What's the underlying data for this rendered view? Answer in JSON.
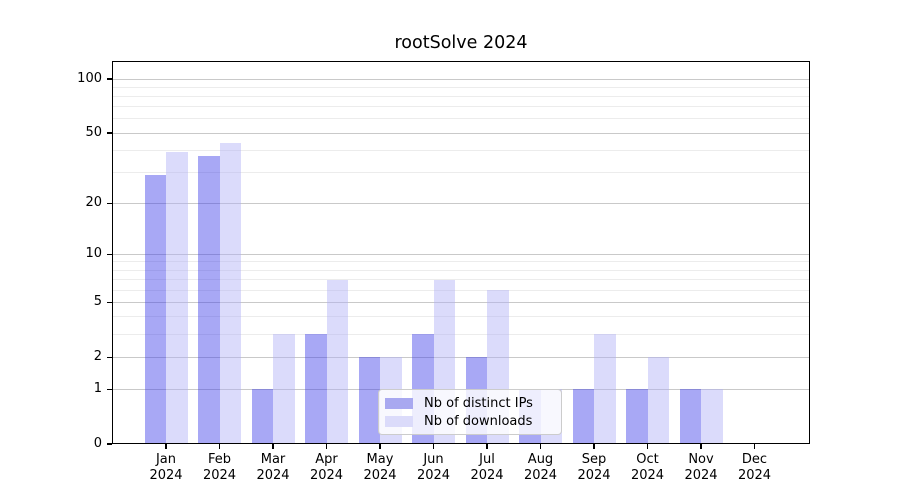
{
  "chart_data": {
    "type": "bar",
    "title": "rootSolve 2024",
    "categories": [
      "Jan",
      "Feb",
      "Mar",
      "Apr",
      "May",
      "Jun",
      "Jul",
      "Aug",
      "Sep",
      "Oct",
      "Nov",
      "Dec"
    ],
    "year_label": "2024",
    "series": [
      {
        "name": "Nb of distinct IPs",
        "values": [
          29,
          37,
          1,
          3,
          2,
          3,
          2,
          1,
          1,
          1,
          1,
          0
        ],
        "color": "#a8a8f0",
        "bar_fill": "rgba(62,62,233,0.45)"
      },
      {
        "name": "Nb of downloads",
        "values": [
          39,
          44,
          3,
          7,
          2,
          7,
          6,
          1,
          3,
          2,
          1,
          0
        ],
        "color": "#dbdbfa",
        "bar_fill": "rgba(175,175,247,0.45)"
      }
    ],
    "y_axis": {
      "scale": "log1p",
      "tick_labels": [
        "100",
        "50",
        "20",
        "10",
        "5",
        "2",
        "1",
        "0"
      ],
      "tick_values": [
        100,
        50,
        20,
        10,
        5,
        2,
        1,
        0
      ],
      "minor_gridline_values": [
        90,
        80,
        70,
        60,
        40,
        30,
        9,
        8,
        7,
        6,
        4,
        3
      ],
      "range_max": 100
    },
    "legend_position": "bottom-center",
    "grid": true,
    "colors": {
      "axis": "#000000",
      "major_grid": "#c9c9c9",
      "minor_grid": "#ececec",
      "background": "#ffffff"
    }
  }
}
